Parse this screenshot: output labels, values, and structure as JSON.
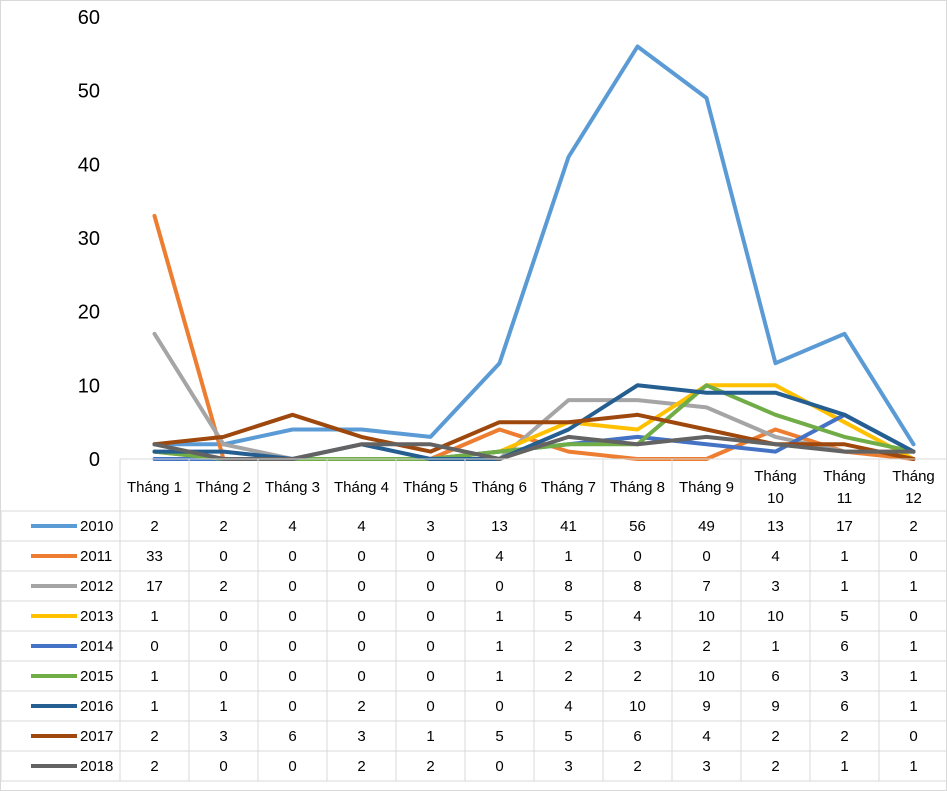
{
  "chart_data": {
    "type": "line",
    "title": "",
    "xlabel": "",
    "ylabel": "",
    "ylim": [
      0,
      60
    ],
    "yticks": [
      0,
      10,
      20,
      30,
      40,
      50,
      60
    ],
    "grid": false,
    "legend": "data-table",
    "categories": [
      [
        "Tháng 1"
      ],
      [
        "Tháng 2"
      ],
      [
        "Tháng 3"
      ],
      [
        "Tháng 4"
      ],
      [
        "Tháng 5"
      ],
      [
        "Tháng 6"
      ],
      [
        "Tháng 7"
      ],
      [
        "Tháng 8"
      ],
      [
        "Tháng 9"
      ],
      [
        "Tháng",
        "10"
      ],
      [
        "Tháng",
        "11"
      ],
      [
        "Tháng",
        "12"
      ]
    ],
    "series": [
      {
        "name": "2010",
        "color": "#5B9BD5",
        "values": [
          2,
          2,
          4,
          4,
          3,
          13,
          41,
          56,
          49,
          13,
          17,
          2
        ]
      },
      {
        "name": "2011",
        "color": "#ED7D31",
        "values": [
          33,
          0,
          0,
          0,
          0,
          4,
          1,
          0,
          0,
          4,
          1,
          0
        ]
      },
      {
        "name": "2012",
        "color": "#A5A5A5",
        "values": [
          17,
          2,
          0,
          0,
          0,
          0,
          8,
          8,
          7,
          3,
          1,
          1
        ]
      },
      {
        "name": "2013",
        "color": "#FFC000",
        "values": [
          1,
          0,
          0,
          0,
          0,
          1,
          5,
          4,
          10,
          10,
          5,
          0
        ]
      },
      {
        "name": "2014",
        "color": "#4472C4",
        "values": [
          0,
          0,
          0,
          0,
          0,
          1,
          2,
          3,
          2,
          1,
          6,
          1
        ]
      },
      {
        "name": "2015",
        "color": "#70AD47",
        "values": [
          1,
          0,
          0,
          0,
          0,
          1,
          2,
          2,
          10,
          6,
          3,
          1
        ]
      },
      {
        "name": "2016",
        "color": "#255E91",
        "values": [
          1,
          1,
          0,
          2,
          0,
          0,
          4,
          10,
          9,
          9,
          6,
          1
        ]
      },
      {
        "name": "2017",
        "color": "#9E480E",
        "values": [
          2,
          3,
          6,
          3,
          1,
          5,
          5,
          6,
          4,
          2,
          2,
          0
        ]
      },
      {
        "name": "2018",
        "color": "#636363",
        "values": [
          2,
          0,
          0,
          2,
          2,
          0,
          3,
          2,
          3,
          2,
          1,
          1
        ]
      }
    ]
  }
}
